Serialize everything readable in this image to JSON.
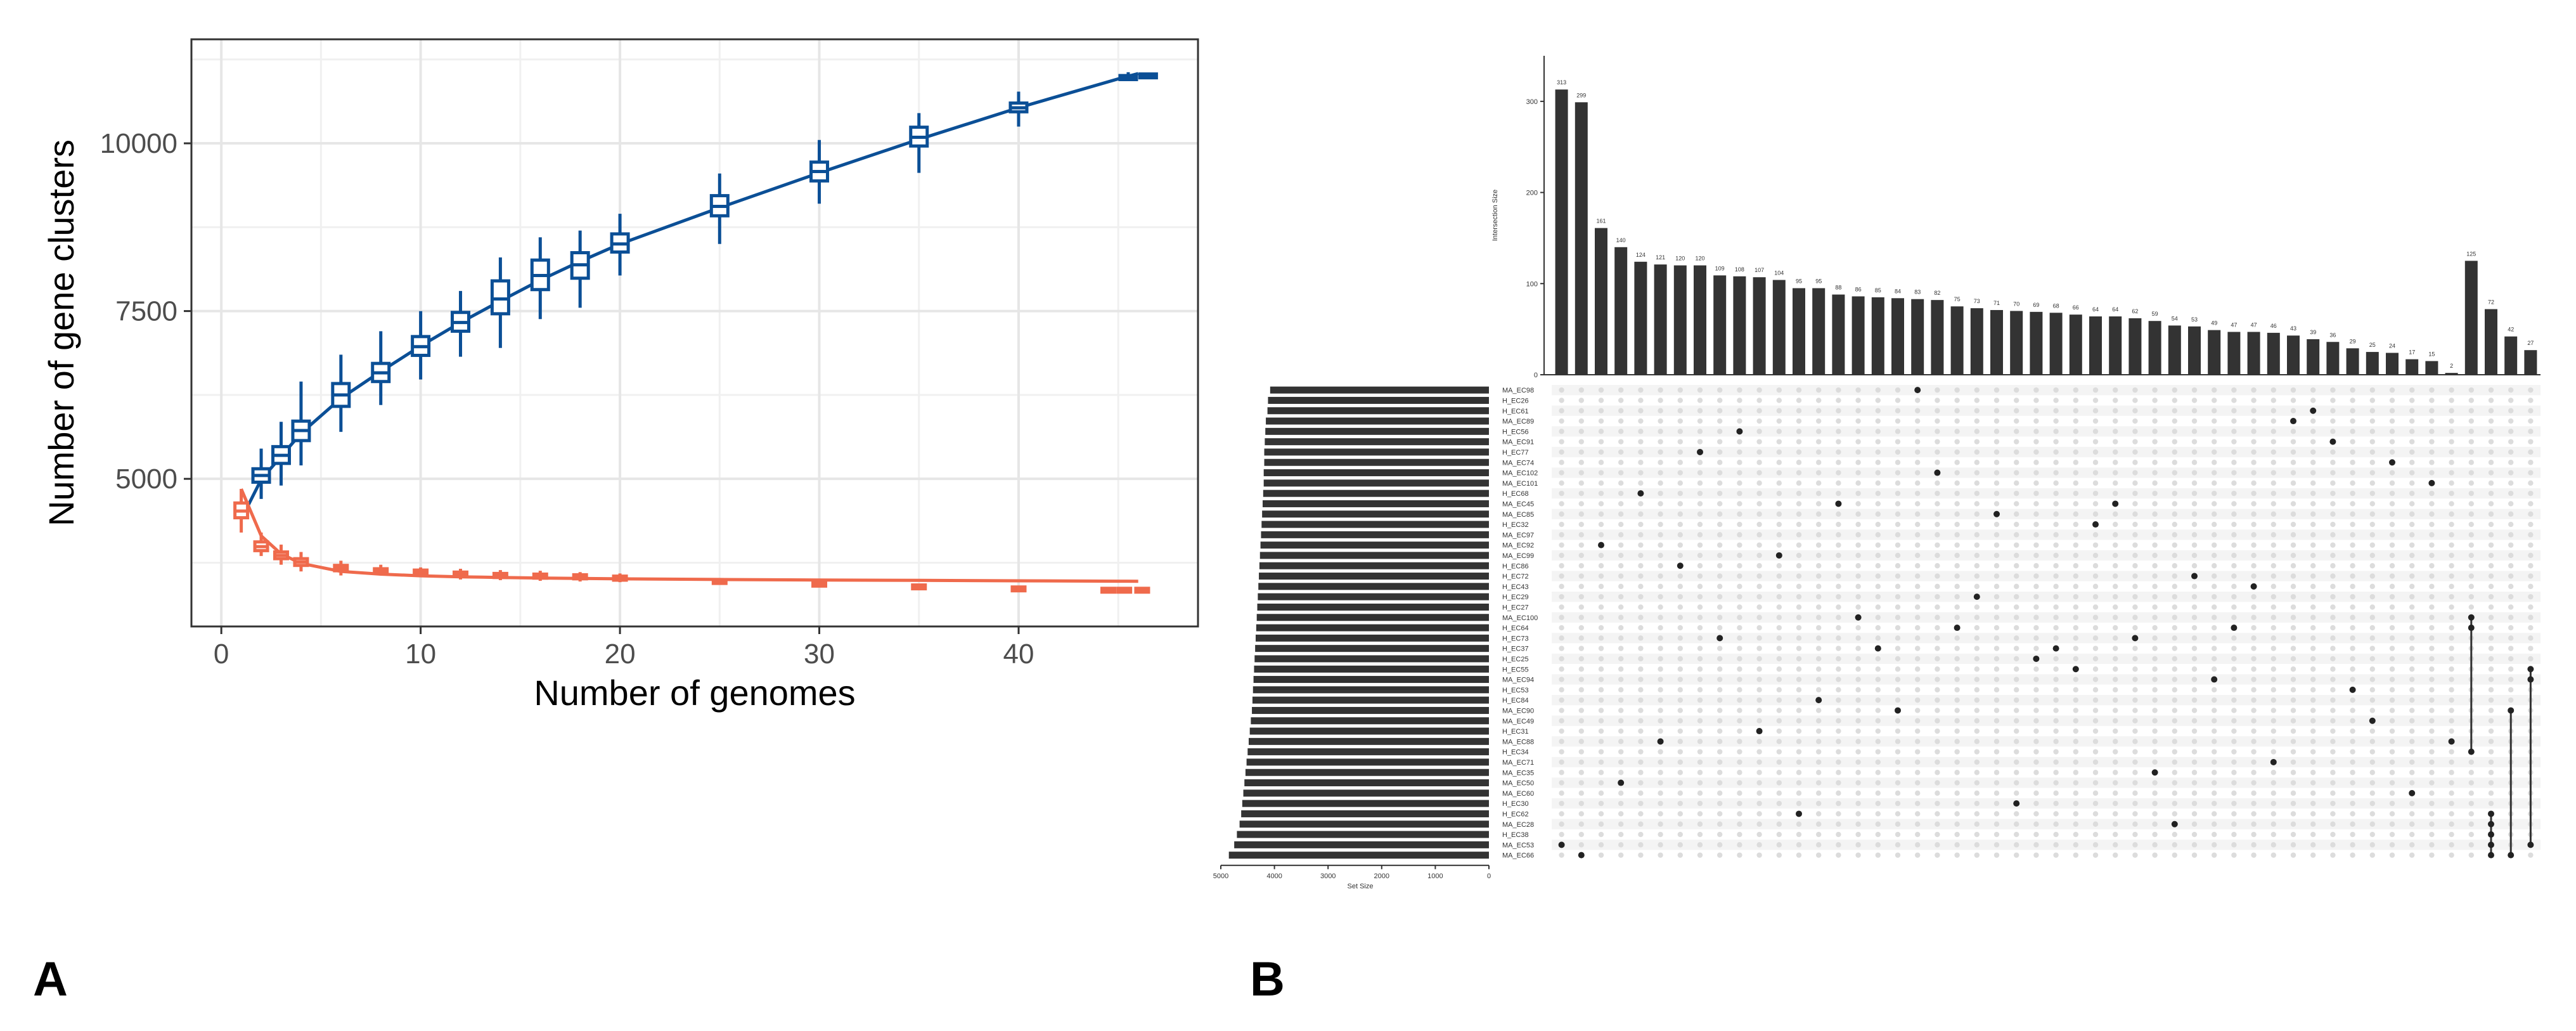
{
  "panels": {
    "a_label": "A",
    "b_label": "B"
  },
  "colors": {
    "pan": "#0b4f96",
    "core": "#ef6a4c",
    "bar": "#333333",
    "grid": "#e6e6e6",
    "dot_off": "#dcdcdc"
  },
  "chart_data": [
    {
      "id": "A",
      "type": "box-line",
      "xlabel": "Number of genomes",
      "ylabel": "Number of gene clusters",
      "xlim": [
        -1.5,
        49
      ],
      "ylim": [
        2800,
        11550
      ],
      "xticks": [
        0,
        10,
        20,
        30,
        40
      ],
      "yticks": [
        5000,
        7500,
        10000
      ],
      "series": [
        {
          "name": "pan",
          "x": [
            2,
            3,
            4,
            6,
            8,
            10,
            12,
            14,
            16,
            18,
            20,
            25,
            30,
            35,
            40,
            45.5,
            46.5
          ],
          "median": [
            5050,
            5350,
            5720,
            6250,
            6580,
            6970,
            7330,
            7680,
            8030,
            8190,
            8500,
            9060,
            9580,
            10090,
            10530,
            10980,
            11000
          ],
          "q1": [
            4950,
            5230,
            5570,
            6080,
            6450,
            6840,
            7200,
            7460,
            7820,
            7990,
            8380,
            8920,
            9440,
            9960,
            10470,
            10950,
            10990
          ],
          "q3": [
            5150,
            5480,
            5860,
            6420,
            6720,
            7120,
            7480,
            7950,
            8260,
            8370,
            8650,
            9220,
            9720,
            10240,
            10600,
            11010,
            11020
          ],
          "lo": [
            4700,
            4900,
            5200,
            5700,
            6100,
            6480,
            6820,
            6950,
            7380,
            7550,
            8030,
            8500,
            9100,
            9560,
            10250,
            10930,
            10980
          ],
          "hi": [
            5450,
            5850,
            6450,
            6850,
            7200,
            7500,
            7800,
            8300,
            8600,
            8700,
            8950,
            9550,
            10050,
            10450,
            10770,
            11060,
            11040
          ],
          "fit_x": [
            1,
            2,
            4,
            6,
            8,
            10,
            12,
            14,
            16,
            18,
            20,
            25,
            30,
            35,
            40,
            45,
            46
          ],
          "fit_y": [
            4400,
            4990,
            5680,
            6200,
            6600,
            6980,
            7330,
            7650,
            7960,
            8240,
            8500,
            9040,
            9560,
            10060,
            10530,
            10960,
            11040
          ]
        },
        {
          "name": "core",
          "x": [
            1,
            2,
            3,
            4,
            6,
            8,
            10,
            12,
            14,
            16,
            18,
            20,
            25,
            30,
            35,
            40,
            44.5,
            45.3,
            46.2
          ],
          "median": [
            4520,
            3990,
            3860,
            3760,
            3670,
            3630,
            3610,
            3580,
            3560,
            3550,
            3540,
            3520,
            3470,
            3430,
            3390,
            3360,
            3340,
            3340,
            3340
          ],
          "q1": [
            4420,
            3930,
            3810,
            3710,
            3630,
            3600,
            3580,
            3550,
            3530,
            3520,
            3510,
            3490,
            3445,
            3410,
            3370,
            3345,
            3325,
            3325,
            3325
          ],
          "q3": [
            4640,
            4060,
            3910,
            3810,
            3710,
            3660,
            3640,
            3610,
            3590,
            3580,
            3570,
            3550,
            3495,
            3450,
            3410,
            3375,
            3355,
            3355,
            3355
          ],
          "lo": [
            4200,
            3850,
            3720,
            3620,
            3560,
            3560,
            3540,
            3500,
            3490,
            3480,
            3470,
            3460,
            3420,
            3395,
            3360,
            3335,
            3320,
            3320,
            3320
          ],
          "hi": [
            4850,
            4200,
            4020,
            3910,
            3780,
            3720,
            3680,
            3660,
            3640,
            3630,
            3610,
            3590,
            3520,
            3465,
            3420,
            3385,
            3360,
            3360,
            3360
          ],
          "fit_x": [
            1,
            1.5,
            2,
            3,
            4,
            6,
            8,
            10,
            12,
            14,
            16,
            18,
            20,
            25,
            30,
            35,
            40,
            45,
            46
          ],
          "fit_y": [
            4850,
            4500,
            4150,
            3880,
            3740,
            3620,
            3580,
            3555,
            3540,
            3530,
            3522,
            3515,
            3510,
            3500,
            3493,
            3487,
            3480,
            3475,
            3474
          ]
        }
      ]
    },
    {
      "id": "B",
      "type": "upset",
      "ylabel": "Intersection Size",
      "ylim": [
        0,
        350
      ],
      "yticks": [
        0,
        100,
        200,
        300
      ],
      "set_size_label": "Set Size",
      "set_size_ticks": [
        5000,
        4000,
        3000,
        2000,
        1000,
        0
      ],
      "set_size_max": 5000,
      "intersection_values": [
        313,
        299,
        161,
        140,
        124,
        121,
        120,
        120,
        109,
        108,
        107,
        104,
        95,
        95,
        88,
        86,
        85,
        84,
        83,
        82,
        75,
        73,
        71,
        70,
        69,
        68,
        66,
        64,
        64,
        62,
        59,
        54,
        53,
        49,
        47,
        47,
        46,
        43,
        39,
        36,
        29,
        25,
        24,
        17,
        15,
        2,
        125,
        72,
        42,
        27
      ],
      "sets": [
        "MA_EC98",
        "H_EC26",
        "H_EC61",
        "MA_EC89",
        "H_EC56",
        "MA_EC91",
        "H_EC77",
        "MA_EC74",
        "MA_EC102",
        "MA_EC101",
        "H_EC68",
        "MA_EC45",
        "MA_EC85",
        "H_EC32",
        "MA_EC97",
        "MA_EC92",
        "MA_EC99",
        "H_EC86",
        "H_EC72",
        "H_EC43",
        "H_EC29",
        "H_EC27",
        "MA_EC100",
        "H_EC64",
        "H_EC73",
        "H_EC37",
        "H_EC25",
        "H_EC55",
        "MA_EC94",
        "H_EC53",
        "H_EC84",
        "MA_EC90",
        "MA_EC49",
        "H_EC31",
        "MA_EC88",
        "H_EC34",
        "MA_EC71",
        "MA_EC35",
        "MA_EC50",
        "MA_EC60",
        "H_EC30",
        "H_EC62",
        "MA_EC28",
        "H_EC38",
        "MA_EC53",
        "MA_EC66"
      ],
      "set_sizes": [
        4080,
        4120,
        4130,
        4160,
        4170,
        4180,
        4190,
        4190,
        4200,
        4200,
        4210,
        4220,
        4230,
        4240,
        4250,
        4260,
        4270,
        4280,
        4290,
        4300,
        4310,
        4320,
        4330,
        4340,
        4350,
        4360,
        4370,
        4380,
        4390,
        4400,
        4410,
        4420,
        4440,
        4460,
        4480,
        4500,
        4520,
        4540,
        4560,
        4580,
        4600,
        4620,
        4650,
        4700,
        4750,
        4850
      ],
      "matrix_members": [
        [
          44
        ],
        [
          45
        ],
        [
          15
        ],
        [
          38
        ],
        [
          10
        ],
        [
          34
        ],
        [
          17
        ],
        [
          6
        ],
        [
          24
        ],
        [
          4
        ],
        [
          33
        ],
        [
          16
        ],
        [
          41
        ],
        [
          30
        ],
        [
          11
        ],
        [
          22
        ],
        [
          25
        ],
        [
          31
        ],
        [
          0
        ],
        [
          8
        ],
        [
          23
        ],
        [
          20
        ],
        [
          12
        ],
        [
          40
        ],
        [
          26
        ],
        [
          25
        ],
        [
          27
        ],
        [
          13
        ],
        [
          11
        ],
        [
          24
        ],
        [
          37
        ],
        [
          42
        ],
        [
          18
        ],
        [
          28
        ],
        [
          23
        ],
        [
          19
        ],
        [
          36
        ],
        [
          3
        ],
        [
          2
        ],
        [
          5
        ],
        [
          29
        ],
        [
          32
        ],
        [
          7
        ],
        [
          39
        ],
        [
          9
        ],
        [
          34
        ],
        [
          22,
          23,
          35
        ],
        [
          41,
          42,
          43,
          44,
          45
        ],
        [
          31,
          45
        ],
        [
          27,
          28,
          44
        ]
      ]
    }
  ]
}
